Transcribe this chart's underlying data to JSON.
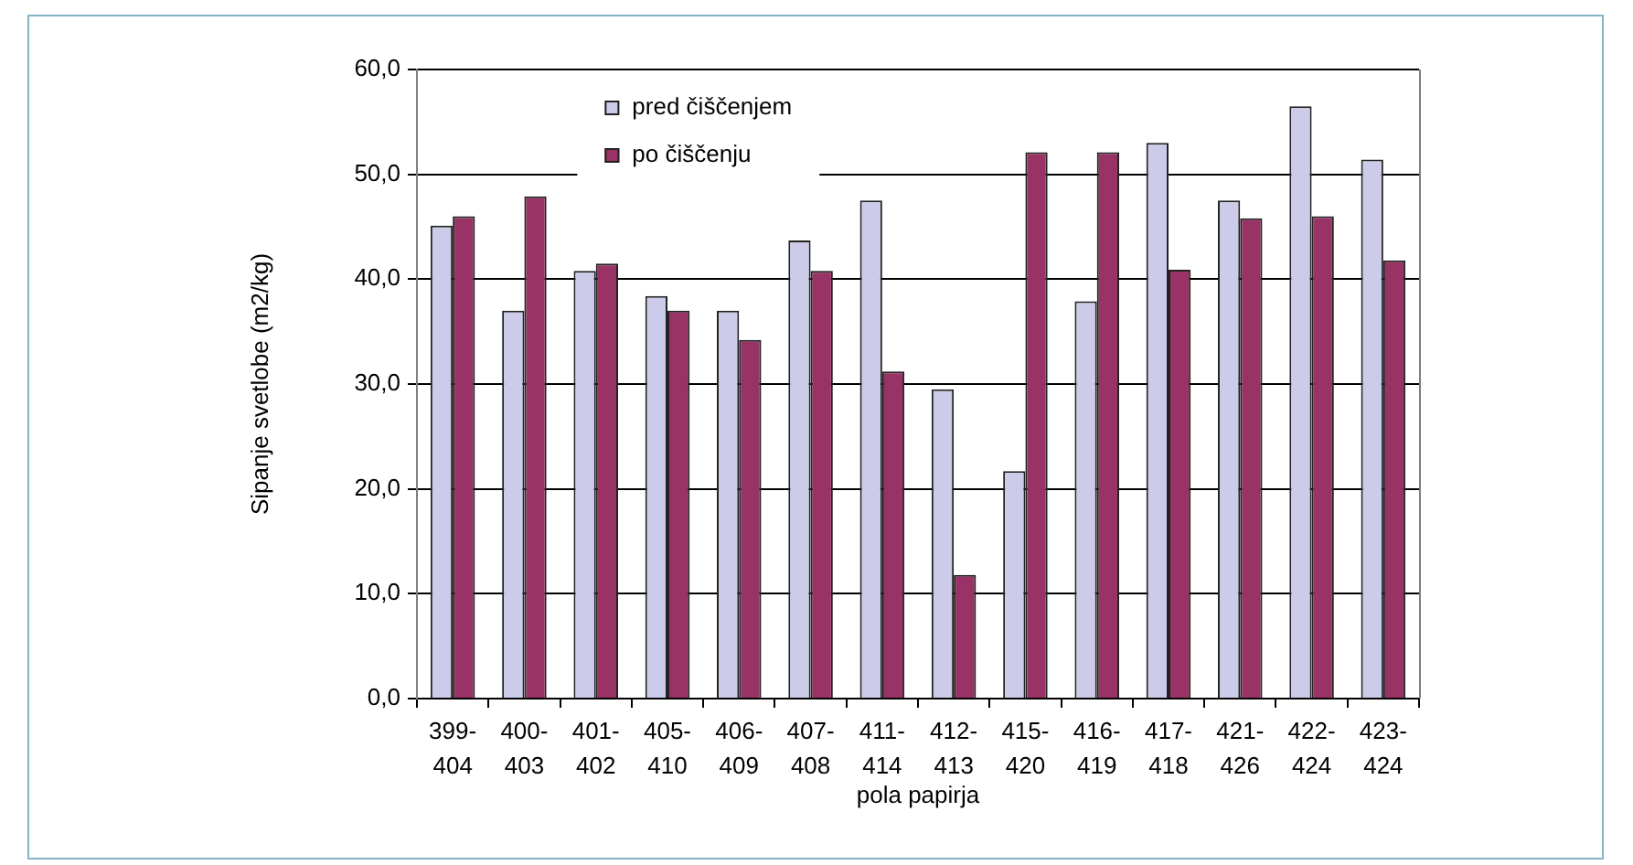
{
  "chart_data": {
    "type": "bar",
    "xlabel": "pola papirja",
    "ylabel": "Sipanje svetlobe (m2/kg)",
    "categories": [
      "399-404",
      "400-403",
      "401-402",
      "405-410",
      "406-409",
      "407-408",
      "411-414",
      "412-413",
      "415-420",
      "416-419",
      "417-418",
      "421-426",
      "422-424",
      "423-424"
    ],
    "series": [
      {
        "name": "pred čiščenjem",
        "color": "#ccccea",
        "values": [
          45.1,
          37.0,
          40.8,
          38.4,
          37.0,
          43.7,
          47.5,
          29.5,
          21.7,
          37.9,
          53.0,
          47.5,
          56.5,
          51.4
        ]
      },
      {
        "name": "po čiščenju",
        "color": "#993366",
        "values": [
          46.0,
          47.9,
          41.5,
          37.0,
          34.2,
          40.8,
          31.2,
          11.8,
          52.1,
          52.1,
          40.9,
          45.8,
          46.0,
          41.8
        ]
      }
    ],
    "ylim": [
      0,
      60
    ],
    "yticks": [
      {
        "value": 0,
        "label": "0,0"
      },
      {
        "value": 10,
        "label": "10,0"
      },
      {
        "value": 20,
        "label": "20,0"
      },
      {
        "value": 30,
        "label": "30,0"
      },
      {
        "value": 40,
        "label": "40,0"
      },
      {
        "value": 50,
        "label": "50,0"
      },
      {
        "value": 60,
        "label": "60,0"
      }
    ],
    "grid": "y",
    "legend": "top left"
  }
}
